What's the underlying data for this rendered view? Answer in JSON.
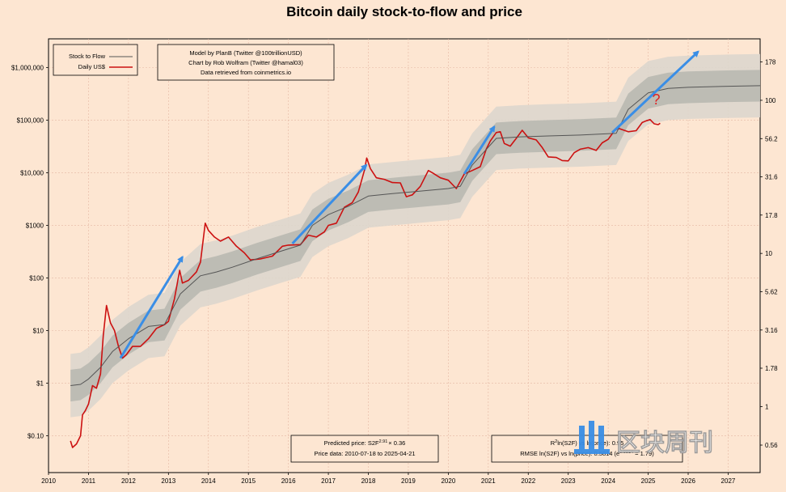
{
  "chart_data": {
    "type": "line",
    "title": "Bitcoin daily stock-to-flow and price",
    "x_ticks": [
      "2010",
      "2011",
      "2012",
      "2013",
      "2014",
      "2015",
      "2016",
      "2017",
      "2018",
      "2019",
      "2020",
      "2021",
      "2022",
      "2023",
      "2024",
      "2025",
      "2026",
      "2027"
    ],
    "xlim": [
      2010,
      2027.8
    ],
    "y_ticks_left": [
      "$0.10",
      "$1",
      "$10",
      "$100",
      "$1000",
      "$10,000",
      "$100,000",
      "$1,000,000"
    ],
    "y_ticks_right": [
      "0.56",
      "1",
      "1.78",
      "3.16",
      "5.62",
      "10",
      "17.8",
      "31.6",
      "56.2",
      "100",
      "178"
    ],
    "ylim_price": [
      0.02,
      3500000
    ],
    "grid": true,
    "legend": {
      "position": "top-left",
      "entries": [
        "Stock to Flow",
        "Daily US$"
      ]
    },
    "series": [
      {
        "name": "Daily US$",
        "color": "#cc1111",
        "points": [
          [
            2010.55,
            0.08
          ],
          [
            2010.6,
            0.06
          ],
          [
            2010.7,
            0.07
          ],
          [
            2010.8,
            0.1
          ],
          [
            2010.85,
            0.25
          ],
          [
            2010.92,
            0.3
          ],
          [
            2011.0,
            0.4
          ],
          [
            2011.1,
            0.9
          ],
          [
            2011.2,
            0.8
          ],
          [
            2011.3,
            1.5
          ],
          [
            2011.37,
            8
          ],
          [
            2011.45,
            30
          ],
          [
            2011.55,
            14
          ],
          [
            2011.65,
            10
          ],
          [
            2011.75,
            5
          ],
          [
            2011.85,
            3
          ],
          [
            2011.95,
            3.5
          ],
          [
            2012.1,
            5
          ],
          [
            2012.3,
            5
          ],
          [
            2012.5,
            7
          ],
          [
            2012.7,
            11
          ],
          [
            2012.9,
            13
          ],
          [
            2013.0,
            15
          ],
          [
            2013.15,
            40
          ],
          [
            2013.28,
            140
          ],
          [
            2013.35,
            80
          ],
          [
            2013.5,
            90
          ],
          [
            2013.7,
            130
          ],
          [
            2013.8,
            200
          ],
          [
            2013.92,
            1100
          ],
          [
            2014.0,
            800
          ],
          [
            2014.15,
            600
          ],
          [
            2014.3,
            500
          ],
          [
            2014.5,
            600
          ],
          [
            2014.7,
            400
          ],
          [
            2014.9,
            300
          ],
          [
            2015.05,
            220
          ],
          [
            2015.3,
            230
          ],
          [
            2015.6,
            260
          ],
          [
            2015.85,
            400
          ],
          [
            2016.0,
            420
          ],
          [
            2016.3,
            430
          ],
          [
            2016.5,
            650
          ],
          [
            2016.7,
            600
          ],
          [
            2016.9,
            750
          ],
          [
            2017.0,
            1000
          ],
          [
            2017.2,
            1100
          ],
          [
            2017.4,
            2200
          ],
          [
            2017.6,
            2700
          ],
          [
            2017.75,
            4300
          ],
          [
            2017.9,
            11000
          ],
          [
            2017.96,
            19000
          ],
          [
            2018.05,
            12000
          ],
          [
            2018.2,
            8000
          ],
          [
            2018.4,
            7500
          ],
          [
            2018.6,
            6500
          ],
          [
            2018.8,
            6400
          ],
          [
            2018.95,
            3500
          ],
          [
            2019.1,
            3800
          ],
          [
            2019.3,
            5500
          ],
          [
            2019.5,
            11000
          ],
          [
            2019.6,
            10000
          ],
          [
            2019.8,
            8000
          ],
          [
            2020.0,
            7200
          ],
          [
            2020.2,
            5000
          ],
          [
            2020.4,
            9500
          ],
          [
            2020.6,
            11000
          ],
          [
            2020.8,
            13000
          ],
          [
            2020.95,
            28000
          ],
          [
            2021.05,
            40000
          ],
          [
            2021.2,
            58000
          ],
          [
            2021.3,
            60000
          ],
          [
            2021.4,
            36000
          ],
          [
            2021.55,
            32000
          ],
          [
            2021.7,
            45000
          ],
          [
            2021.85,
            64000
          ],
          [
            2022.0,
            46000
          ],
          [
            2022.2,
            42000
          ],
          [
            2022.35,
            30000
          ],
          [
            2022.5,
            20000
          ],
          [
            2022.7,
            19500
          ],
          [
            2022.85,
            17000
          ],
          [
            2023.0,
            16800
          ],
          [
            2023.15,
            24000
          ],
          [
            2023.3,
            28000
          ],
          [
            2023.5,
            30000
          ],
          [
            2023.7,
            26500
          ],
          [
            2023.85,
            37000
          ],
          [
            2024.0,
            43000
          ],
          [
            2024.15,
            62000
          ],
          [
            2024.25,
            70000
          ],
          [
            2024.5,
            60000
          ],
          [
            2024.7,
            63000
          ],
          [
            2024.85,
            90000
          ],
          [
            2024.95,
            97000
          ],
          [
            2025.05,
            102000
          ],
          [
            2025.15,
            85000
          ],
          [
            2025.25,
            82000
          ],
          [
            2025.3,
            87000
          ]
        ]
      },
      {
        "name": "Stock to Flow",
        "color": "#555555",
        "points": [
          [
            2010.55,
            0.9
          ],
          [
            2010.8,
            0.95
          ],
          [
            2011.0,
            1.2
          ],
          [
            2011.3,
            2
          ],
          [
            2011.6,
            4
          ],
          [
            2012.0,
            7
          ],
          [
            2012.5,
            12
          ],
          [
            2012.9,
            13
          ],
          [
            2013.3,
            50
          ],
          [
            2013.8,
            110
          ],
          [
            2014.2,
            130
          ],
          [
            2014.6,
            160
          ],
          [
            2015.2,
            230
          ],
          [
            2015.8,
            320
          ],
          [
            2016.3,
            420
          ],
          [
            2016.6,
            1000
          ],
          [
            2017.0,
            1600
          ],
          [
            2017.5,
            2300
          ],
          [
            2018.0,
            3600
          ],
          [
            2018.6,
            4000
          ],
          [
            2019.2,
            4400
          ],
          [
            2020.0,
            5000
          ],
          [
            2020.3,
            5500
          ],
          [
            2020.6,
            14000
          ],
          [
            2021.2,
            45000
          ],
          [
            2021.8,
            48000
          ],
          [
            2022.5,
            50000
          ],
          [
            2023.3,
            52000
          ],
          [
            2024.2,
            56000
          ],
          [
            2024.5,
            160000
          ],
          [
            2025.0,
            330000
          ],
          [
            2025.5,
            400000
          ],
          [
            2026.0,
            420000
          ],
          [
            2027.0,
            440000
          ],
          [
            2027.8,
            450000
          ]
        ]
      }
    ],
    "band": {
      "inner_factor": 2.0,
      "outer_factor": 4.0
    },
    "annotations": [
      {
        "type": "arrow",
        "from": [
          2011.8,
          3
        ],
        "to": [
          2013.35,
          250
        ]
      },
      {
        "type": "arrow",
        "from": [
          2016.1,
          450
        ],
        "to": [
          2017.95,
          14000
        ]
      },
      {
        "type": "arrow",
        "from": [
          2020.4,
          9500
        ],
        "to": [
          2021.15,
          75000
        ]
      },
      {
        "type": "arrow",
        "from": [
          2024.1,
          58000
        ],
        "to": [
          2026.25,
          2000000
        ]
      },
      {
        "type": "question-mark",
        "at": [
          2025.2,
          200000
        ],
        "text": "?"
      }
    ],
    "info_box_top": [
      "Model by PlanB (Twitter @100trillionUSD)",
      "Chart by Rob Wolfram (Twitter @hamal03)",
      "Data retrieved from coinmetrics.io"
    ],
    "info_box_bottom_left": {
      "line1_prefix": "Predicted price: S2F",
      "line1_sup": "2.91",
      "line1_suffix": "× 0.36",
      "line2": "Price data: 2010-07-18 to 2025-04-21"
    },
    "info_box_bottom_right": {
      "line1_prefix": "R",
      "line1_sup": "2",
      "line1_rest": "ln(S2F) vs ln(price): 0.95",
      "line2": "RMSE ln(S2F) vs ln(price): 0.5814 (e",
      "line2_suffix": " = 1.79)"
    },
    "colors": {
      "background": "#fde6d2",
      "grid": "#e4b8a4",
      "band_inner": "#b9b9b1",
      "band_outer": "#ddd6cd",
      "price": "#cc1111",
      "s2f": "#555555",
      "arrow": "#3a8ee6",
      "question": "#e02020"
    }
  },
  "watermark": {
    "text": "区块周刊"
  }
}
